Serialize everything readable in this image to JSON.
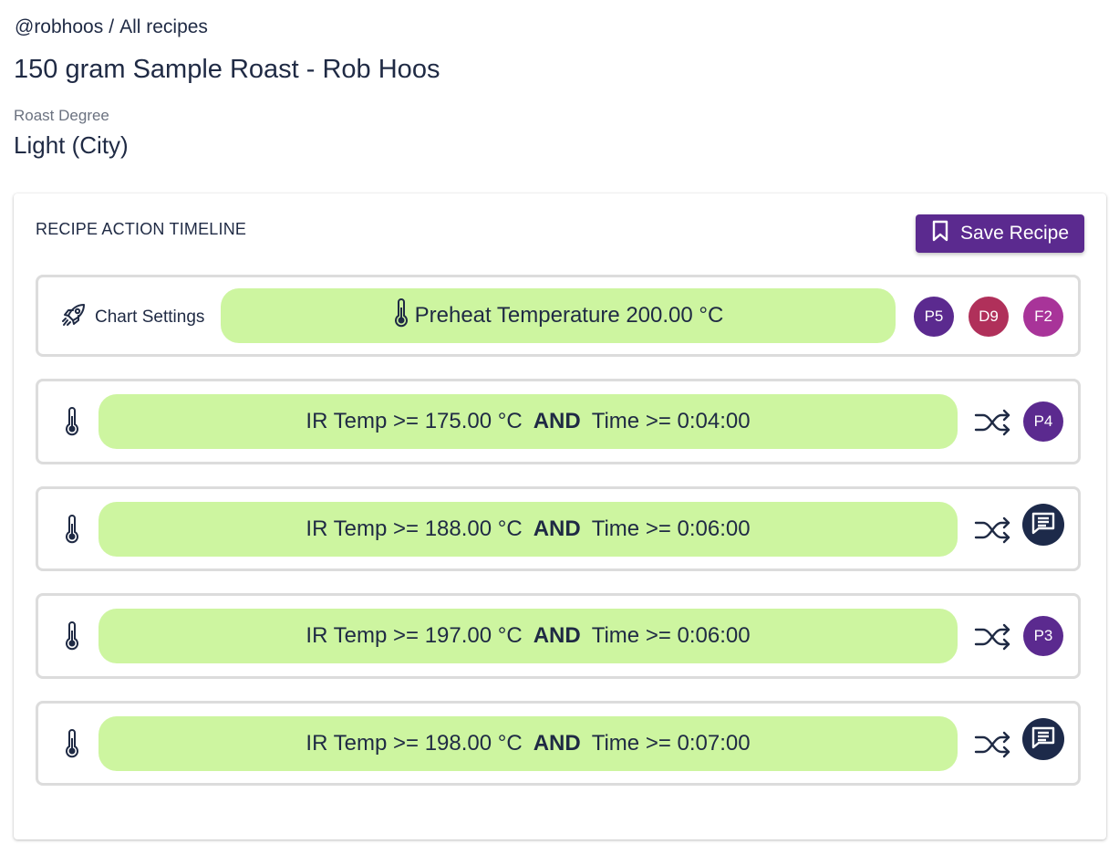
{
  "breadcrumb": {
    "user": "@robhoos",
    "separator": "/",
    "section": "All recipes"
  },
  "recipe": {
    "title": "150 gram Sample Roast - Rob Hoos",
    "degree_label": "Roast Degree",
    "degree_value": "Light (City)"
  },
  "timeline": {
    "title": "RECIPE ACTION TIMELINE",
    "save_label": "Save Recipe",
    "chart_settings_label": "Chart Settings",
    "preheat": "Preheat Temperature 200.00 °C",
    "preheat_badges": [
      {
        "label": "P5",
        "color": "#5b2a8f"
      },
      {
        "label": "D9",
        "color": "#b0305a"
      },
      {
        "label": "F2",
        "color": "#a83499"
      }
    ],
    "actions": [
      {
        "condition_a": "IR Temp >= 175.00 °C",
        "operator": "AND",
        "condition_b": "Time >= 0:04:00",
        "badge": "P4",
        "icon": "shuffle-icon"
      },
      {
        "condition_a": "IR Temp >= 188.00 °C",
        "operator": "AND",
        "condition_b": "Time >= 0:06:00",
        "badge": "",
        "icon": "note-icon"
      },
      {
        "condition_a": "IR Temp >= 197.00 °C",
        "operator": "AND",
        "condition_b": "Time >= 0:06:00",
        "badge": "P3",
        "icon": "shuffle-icon"
      },
      {
        "condition_a": "IR Temp >= 198.00 °C",
        "operator": "AND",
        "condition_b": "Time >= 0:07:00",
        "badge": "",
        "icon": "note-icon"
      }
    ]
  },
  "colors": {
    "accent": "#5b2a8f",
    "pill": "#cdf5a0",
    "text": "#1f2a44",
    "note_button": "#1d2a4a"
  }
}
